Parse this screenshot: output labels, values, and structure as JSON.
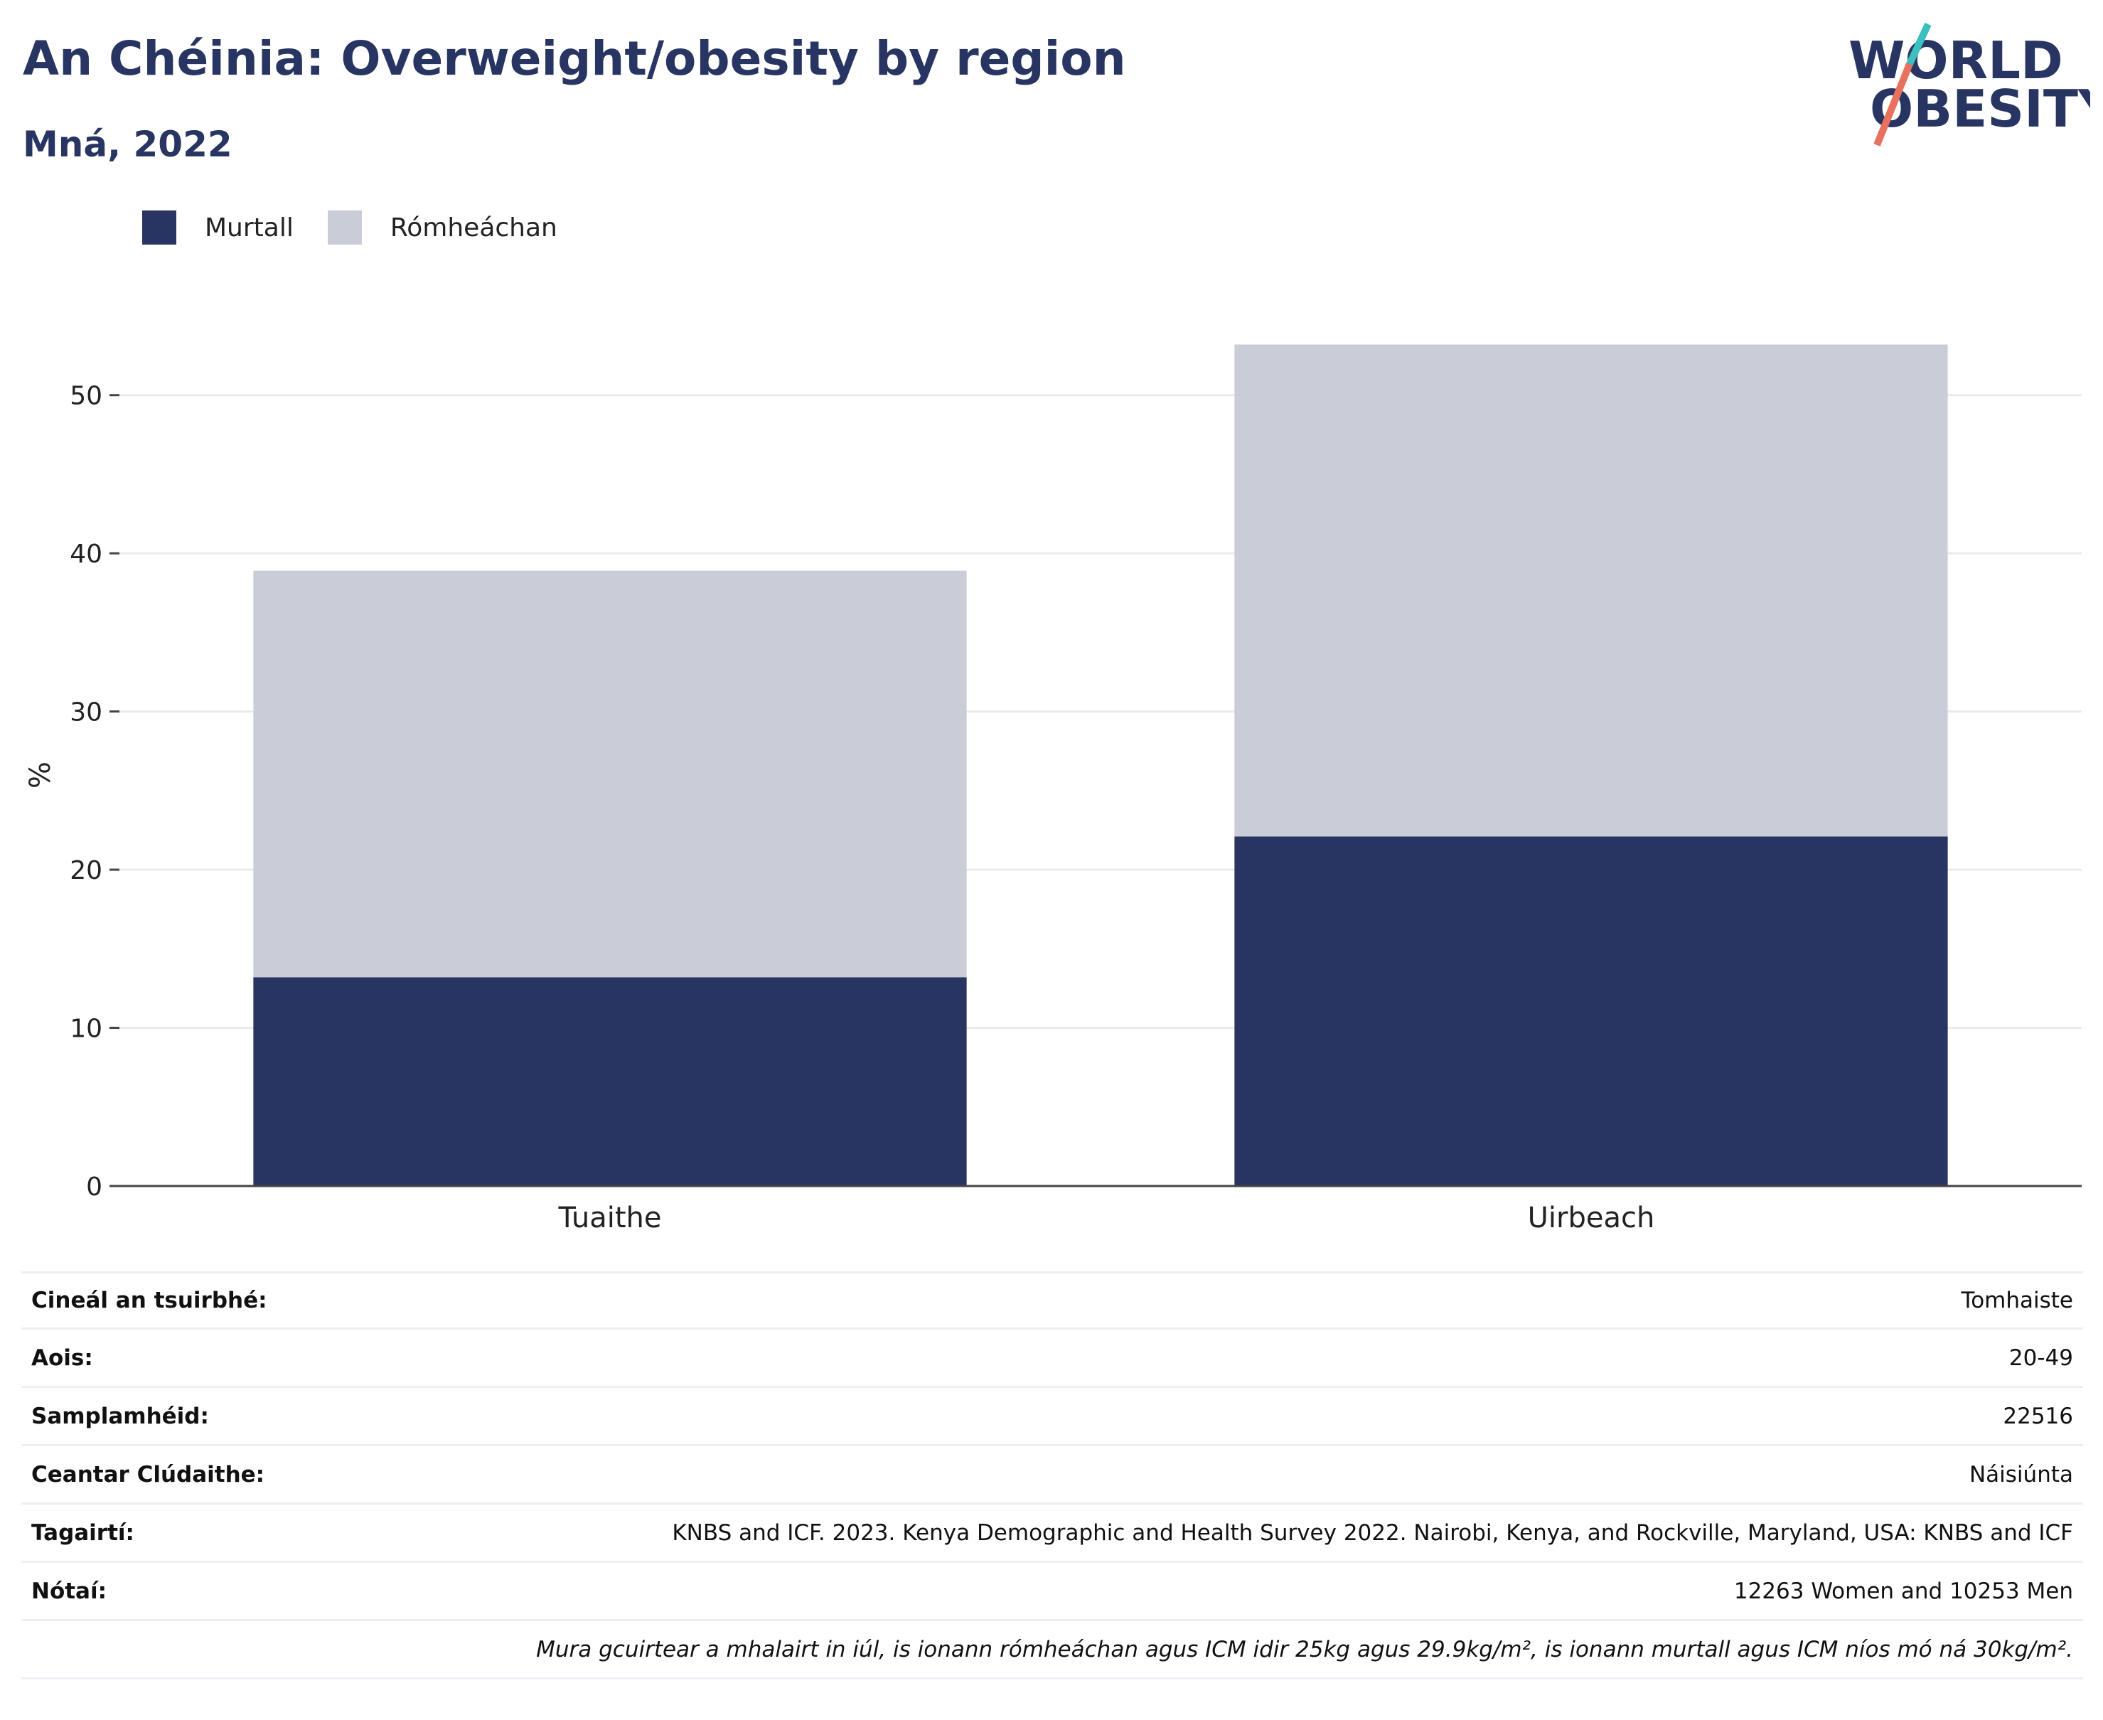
{
  "header": {
    "title": "An Chéinia: Overweight/obesity by region",
    "subtitle": "Mná, 2022"
  },
  "logo": {
    "line1": "WORLD",
    "line2": "OBESITY"
  },
  "colors": {
    "obese": "#283562",
    "overweight": "#cacdd8",
    "title": "#283562"
  },
  "chart_data": {
    "type": "bar",
    "stacked": true,
    "categories": [
      "Tuaithe",
      "Uirbeach"
    ],
    "series": [
      {
        "name": "Murtall",
        "values": [
          13.2,
          22.1
        ]
      },
      {
        "name": "Rómheáchan",
        "values": [
          25.7,
          31.1
        ]
      }
    ],
    "ylabel": "%",
    "xlabel": "",
    "ylim": [
      0,
      57
    ],
    "yticks": [
      0,
      10,
      20,
      30,
      40,
      50
    ],
    "grid": true,
    "legend_position": "top-left"
  },
  "info": {
    "rows": [
      {
        "label": "Cineál an tsuirbhé:",
        "value": "Tomhaiste"
      },
      {
        "label": "Aois:",
        "value": "20-49"
      },
      {
        "label": "Samplamhéid:",
        "value": "22516"
      },
      {
        "label": "Ceantar Clúdaithe:",
        "value": "Náisiúnta"
      },
      {
        "label": "Tagairtí:",
        "value": "KNBS and ICF. 2023. Kenya Demographic and Health Survey 2022. Nairobi, Kenya, and Rockville, Maryland, USA: KNBS and ICF"
      },
      {
        "label": "Nótaí:",
        "value": "12263 Women and 10253 Men"
      }
    ],
    "footnote": "Mura gcuirtear a mhalairt in iúl, is ionann rómheáchan agus ICM idir 25kg agus 29.9kg/m², is ionann murtall agus ICM níos mó ná 30kg/m²."
  }
}
